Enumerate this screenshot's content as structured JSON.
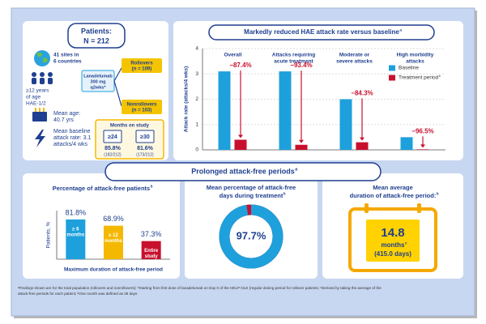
{
  "patients": {
    "title": "Patients:",
    "n": "N = 212",
    "sites": [
      "41 sites in",
      "6 countries"
    ],
    "age_group": [
      "≥12 years",
      "of age",
      "HAE-1/2"
    ],
    "drug": [
      "Lanadelumab",
      "300 mg",
      "q2wks*"
    ],
    "rollovers": [
      "Rollovers",
      "(n = 109)"
    ],
    "nonrollovers": [
      "Nonrollovers",
      "(n = 103)"
    ],
    "months_title": "Months on study",
    "months": [
      {
        "label": "≥24",
        "pct": "85.8%",
        "count": "(182/212)"
      },
      {
        "label": "≥30",
        "pct": "81.6%",
        "count": "(173/212)"
      }
    ],
    "mean_age": [
      "Mean age:",
      "40.7 yrs"
    ],
    "baseline_rate": [
      "Mean baseline",
      "attack rate: 3.1",
      "attacks/4 wks"
    ]
  },
  "section_title": "Prolonged attack-free periods",
  "section_title_sup": "a",
  "chart_data": [
    {
      "type": "bar",
      "title": "Markedly reduced HAE attack rate versus baseline",
      "title_sup": "a",
      "y_label": "Attack rate (attacks/4 wks)",
      "categories": [
        [
          "Overall"
        ],
        [
          "Attacks requiring",
          "acute treatment"
        ],
        [
          "Moderate or",
          "severe attacks"
        ],
        [
          "High morbidity",
          "attacks"
        ]
      ],
      "series": [
        {
          "name": "Baseline",
          "color": "#1ea0dc",
          "values": [
            3.1,
            3.1,
            2.0,
            0.5
          ]
        },
        {
          "name": "Treatment period",
          "name_sup": "b",
          "color": "#c8102e",
          "values": [
            0.4,
            0.2,
            0.3,
            0.02
          ]
        }
      ],
      "annotations": [
        "−87.4%",
        "−93.4%",
        "−84.3%",
        "−96.5%"
      ],
      "ylim": [
        0,
        4
      ],
      "yticks": [
        0,
        1,
        2,
        3,
        4
      ],
      "grid": true,
      "legend": "top-right"
    },
    {
      "type": "bar",
      "title": "Percentage of attack-free patients",
      "title_sup": "b",
      "y_label": "Patients, %",
      "x_label": "Maximum duration of attack-free period",
      "categories": [
        [
          "≥ 6",
          "months"
        ],
        [
          "≥ 12",
          "months"
        ],
        [
          "Entire",
          "study"
        ]
      ],
      "values": [
        81.8,
        68.9,
        37.3
      ],
      "value_labels": [
        "81.8%",
        "68.9%",
        "37.3%"
      ],
      "colors": [
        "#1ea0dc",
        "#f5b800",
        "#c8102e"
      ],
      "ylim": [
        0,
        100
      ]
    },
    {
      "type": "donut",
      "title": [
        "Mean percentage of attack-free",
        "days during treatment"
      ],
      "title_sup": "b",
      "values": [
        97.7
      ],
      "value_labels": [
        "97.7%"
      ],
      "colors": [
        "#1ea0dc",
        "#c8102e"
      ]
    }
  ],
  "duration": {
    "title": [
      "Mean average",
      "duration of attack-free period:"
    ],
    "title_sup": "b",
    "value": "14.8",
    "unit": "months",
    "unit_sup": "c",
    "days": "(415.0 days)"
  },
  "footnote": [
    "ᵃFindings shown are for the total population (rollovers and nonrollovers); ᵇStarting from first dose of lanadelumab on Day 0 of the HELP OLE (regular dosing period for rollover patients; ᶜDerived by taking the average of the",
    "attack-free periods for each patient; ᵈOne month was defined as 28 days"
  ]
}
